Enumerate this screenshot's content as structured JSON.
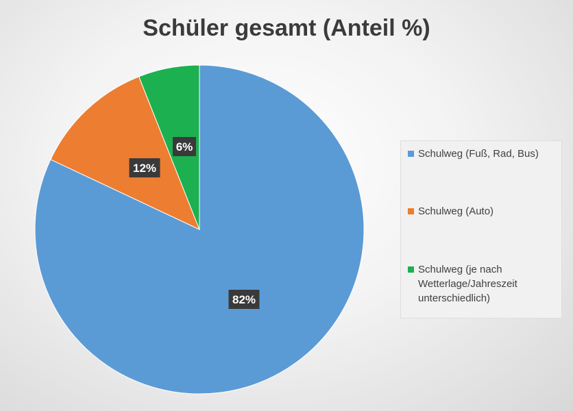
{
  "chart_data": {
    "type": "pie",
    "title": "Schüler gesamt (Anteil %)",
    "categories": [
      "Schulweg (Fuß, Rad, Bus)",
      "Schulweg (Auto)",
      "Schulweg (je nach Wetterlage/Jahreszeit unterschiedlich)"
    ],
    "values": [
      82,
      12,
      6
    ],
    "data_labels": [
      "82%",
      "12%",
      "6%"
    ],
    "colors": [
      "#5b9bd5",
      "#ed7d31",
      "#1db050"
    ],
    "legend_position": "right"
  },
  "legend": {
    "items": [
      {
        "lines": [
          "Schulweg (Fuß, Rad, Bus)"
        ]
      },
      {
        "lines": [
          "Schulweg (Auto)"
        ]
      },
      {
        "lines": [
          "Schulweg (je nach",
          "Wetterlage/Jahreszeit",
          "unterschiedlich)"
        ]
      }
    ]
  }
}
